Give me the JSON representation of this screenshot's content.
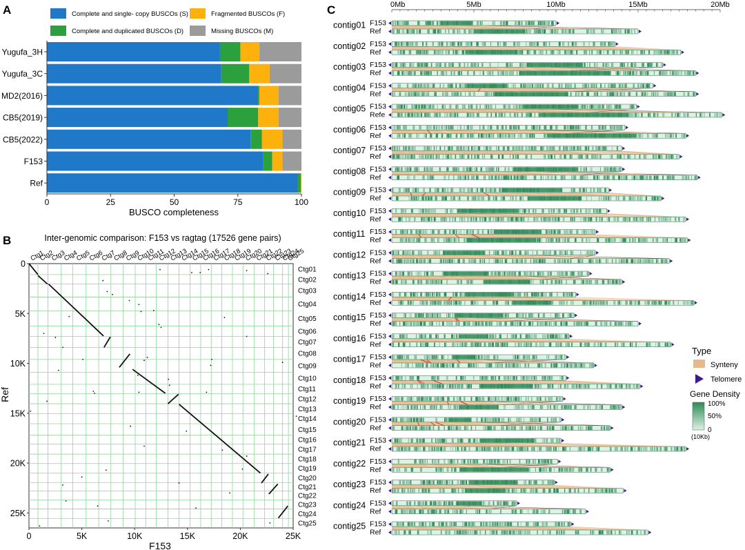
{
  "colors": {
    "single": "#1f78c8",
    "dup": "#2ca03c",
    "frag": "#fdb10c",
    "miss": "#9b9b9b",
    "dot_grid": "#8fd49a",
    "synteny": "#e6b98c",
    "telomere": "#3b1b8a",
    "dens_low": "#ddf1e5",
    "dens_high": "#2e8b57",
    "link": "#e03030"
  },
  "panels": {
    "a": "A",
    "b": "B",
    "c": "C"
  },
  "chart_data": [
    {
      "type": "bar",
      "orientation": "horizontal-stacked",
      "xlabel": "BUSCO completeness",
      "xlim": [
        0,
        100
      ],
      "xticks": [
        "0",
        "25",
        "50",
        "75",
        "100"
      ],
      "categories": [
        "Yugufa_3H",
        "Yugufa_3C",
        "MD2(2016)",
        "CB5(2019)",
        "CB5(2022)",
        "F153",
        "Ref"
      ],
      "series": [
        {
          "name": "Complete and single- copy BUSCOs (S)",
          "values": [
            68,
            68.5,
            83,
            71,
            80,
            85,
            98.5
          ]
        },
        {
          "name": "Complete and duplicated BUSCOs (D)",
          "values": [
            8,
            11,
            0.5,
            12,
            4.5,
            3.5,
            1.3
          ]
        },
        {
          "name": "Fragmented BUSCOs (F)",
          "values": [
            7.5,
            8,
            7.5,
            8,
            8,
            4,
            0.2
          ]
        },
        {
          "name": "Missing BUSCOs (M)",
          "values": [
            16.5,
            12.5,
            9,
            9,
            7.5,
            7.5,
            0
          ]
        }
      ],
      "legend": [
        "Complete and single- copy BUSCOs (S)",
        "Fragmented BUSCOs (F)",
        "Complete and duplicated BUSCOs (D)",
        "Missing BUSCOs (M)"
      ]
    },
    {
      "type": "scatter",
      "title": "Inter-genomic comparison: F153 vs ragtag (17526 gene pairs)",
      "xlabel": "F153",
      "ylabel": "Ref",
      "xlim": [
        0,
        25000
      ],
      "ylim": [
        0,
        26500
      ],
      "xticks": [
        "0",
        "5K",
        "10K",
        "15K",
        "20K",
        "25K"
      ],
      "yticks": [
        "0",
        "5K",
        "10K",
        "15K",
        "20K",
        "25K"
      ],
      "top_labels": [
        "Ctg1",
        "Ctg2",
        "Ctg3",
        "Ctg4",
        "Ctg5",
        "Ctg6",
        "Ctg7",
        "Ctg8",
        "Ctg9",
        "Ctg10",
        "Ctg11",
        "Ctg12",
        "Ctg13",
        "Ctg14",
        "Ctg15",
        "Ctg16",
        "Ctg17",
        "Ctg18",
        "Ctg19",
        "Ctg20",
        "Ctg21",
        "Ctg22",
        "Ctg23",
        "Ctg24",
        "Ctg25"
      ],
      "right_labels": [
        "Ctg01",
        "Ctg02",
        "Ctg03",
        "Ctg04",
        "Ctg05",
        "Ctg06",
        "Ctg07",
        "Ctg08",
        "Ctg09",
        "Ctg10",
        "Ctg11",
        "Ctg12",
        "Ctg13",
        "Ctg14",
        "Ctg15",
        "Ctg16",
        "Ctg17",
        "Ctg18",
        "Ctg19",
        "Ctg20",
        "Ctg21",
        "Ctg22",
        "Ctg23",
        "Ctg24",
        "Ctg25"
      ],
      "x_bounds": [
        0,
        850,
        1800,
        3050,
        4150,
        5400,
        6600,
        7750,
        8900,
        10050,
        11050,
        12050,
        13150,
        14200,
        15250,
        16250,
        17250,
        18250,
        19250,
        20250,
        21300,
        22300,
        23150,
        24000,
        24550,
        25000
      ],
      "y_bounds": [
        0,
        1100,
        2050,
        3350,
        4750,
        6250,
        7300,
        8400,
        9600,
        10900,
        12100,
        13050,
        14050,
        15050,
        16050,
        17200,
        18100,
        19100,
        20050,
        21000,
        21950,
        22800,
        23700,
        24600,
        25550,
        26500
      ],
      "segments": [
        {
          "x": [
            0,
            850
          ],
          "y": [
            0,
            1100
          ]
        },
        {
          "x": [
            850,
            1750
          ],
          "y": [
            1200,
            2050
          ]
        },
        {
          "x": [
            1850,
            7050
          ],
          "y": [
            2050,
            7250
          ]
        },
        {
          "x": [
            7100,
            7700
          ],
          "y": [
            8400,
            7350
          ]
        },
        {
          "x": [
            8550,
            9550
          ],
          "y": [
            10400,
            9050
          ]
        },
        {
          "x": [
            9800,
            12900
          ],
          "y": [
            10600,
            13000
          ]
        },
        {
          "x": [
            13150,
            14150
          ],
          "y": [
            14050,
            13100
          ]
        },
        {
          "x": [
            14200,
            21900
          ],
          "y": [
            14100,
            21000
          ]
        },
        {
          "x": [
            22000,
            22650
          ],
          "y": [
            22000,
            21100
          ]
        },
        {
          "x": [
            22700,
            23550
          ],
          "y": [
            23100,
            22100
          ]
        },
        {
          "x": [
            23600,
            24500
          ],
          "y": [
            25500,
            24300
          ]
        }
      ],
      "points": [
        {
          "x": 7000,
          "y": 1700
        },
        {
          "x": 11800,
          "y": 4700
        },
        {
          "x": 12400,
          "y": 600
        },
        {
          "x": 15400,
          "y": 900
        },
        {
          "x": 16200,
          "y": 900
        },
        {
          "x": 17000,
          "y": 600
        },
        {
          "x": 20600,
          "y": 700
        },
        {
          "x": 22600,
          "y": 1000
        },
        {
          "x": 7400,
          "y": 2800
        },
        {
          "x": 7900,
          "y": 3100
        },
        {
          "x": 9500,
          "y": 3700
        },
        {
          "x": 10400,
          "y": 4100
        },
        {
          "x": 10600,
          "y": 4800
        },
        {
          "x": 3800,
          "y": 5300
        },
        {
          "x": 1400,
          "y": 7000
        },
        {
          "x": 2500,
          "y": 7400
        },
        {
          "x": 3200,
          "y": 8400
        },
        {
          "x": 5100,
          "y": 9600
        },
        {
          "x": 10900,
          "y": 9700
        },
        {
          "x": 11200,
          "y": 9400
        },
        {
          "x": 10300,
          "y": 11200
        },
        {
          "x": 6100,
          "y": 12800
        },
        {
          "x": 6200,
          "y": 13000
        },
        {
          "x": 12300,
          "y": 6100
        },
        {
          "x": 12500,
          "y": 6400
        },
        {
          "x": 16800,
          "y": 12900
        },
        {
          "x": 18500,
          "y": 5400
        },
        {
          "x": 20600,
          "y": 7300
        },
        {
          "x": 17200,
          "y": 10200
        },
        {
          "x": 17300,
          "y": 9600
        },
        {
          "x": 24000,
          "y": 9900
        },
        {
          "x": 1700,
          "y": 13800
        },
        {
          "x": 150,
          "y": 14800
        },
        {
          "x": 5000,
          "y": 21400
        },
        {
          "x": 6500,
          "y": 24300
        },
        {
          "x": 3200,
          "y": 22200
        },
        {
          "x": 7500,
          "y": 25800
        },
        {
          "x": 14200,
          "y": 22000
        },
        {
          "x": 14900,
          "y": 16800
        },
        {
          "x": 19000,
          "y": 23000
        },
        {
          "x": 10900,
          "y": 18300
        },
        {
          "x": 3500,
          "y": 23800
        },
        {
          "x": 15800,
          "y": 24500
        },
        {
          "x": 18300,
          "y": 18700
        },
        {
          "x": 20200,
          "y": 20600
        },
        {
          "x": 20600,
          "y": 19300
        },
        {
          "x": 22800,
          "y": 26000
        },
        {
          "x": 25300,
          "y": 15300
        },
        {
          "x": 7300,
          "y": 20700
        },
        {
          "x": 9600,
          "y": 16300
        },
        {
          "x": 2800,
          "y": 10700
        },
        {
          "x": 13200,
          "y": 11600
        },
        {
          "x": 13300,
          "y": 12200
        },
        {
          "x": 10400,
          "y": 12900
        },
        {
          "x": 1000,
          "y": 26300
        }
      ]
    },
    {
      "type": "other",
      "axis_unit": "Mb",
      "axis_ticks": [
        "0Mb",
        "5Mb",
        "10Mb",
        "15Mb",
        "20Mb"
      ],
      "xlim": [
        0,
        20
      ],
      "contigs": [
        {
          "name": "contig01",
          "query": "F153",
          "ref": "Ref",
          "q_len": 10.0,
          "r_len": 15.0,
          "inverted": true,
          "links": 0
        },
        {
          "name": "contig02",
          "query": "F153",
          "ref": "Ref",
          "q_len": 13.6,
          "r_len": 17.6,
          "inverted": false,
          "links": 0
        },
        {
          "name": "contig03",
          "query": "F153",
          "ref": "Ref",
          "q_len": 16.5,
          "r_len": 18.5,
          "inverted": true,
          "links": 0
        },
        {
          "name": "contig04",
          "query": "F153",
          "ref": "Ref",
          "q_len": 15.9,
          "r_len": 18.5,
          "inverted": true,
          "links": 1
        },
        {
          "name": "contig05",
          "query": "F153",
          "ref": "Refe",
          "q_len": 14.9,
          "r_len": 20.1,
          "inverted": true,
          "links": 0
        },
        {
          "name": "contig06",
          "query": "F153",
          "ref": "Ref",
          "q_len": 14.2,
          "r_len": 17.9,
          "inverted": true,
          "links": 1
        },
        {
          "name": "contig07",
          "query": "F153",
          "ref": "Ref",
          "q_len": 14.0,
          "r_len": 17.5,
          "inverted": false,
          "links": 0
        },
        {
          "name": "contig08",
          "query": "F153",
          "ref": "Ref",
          "q_len": 14.0,
          "r_len": 18.6,
          "inverted": true,
          "links": 0
        },
        {
          "name": "contig09",
          "query": "F153",
          "ref": "Ref",
          "q_len": 13.2,
          "r_len": 16.4,
          "inverted": false,
          "links": 3
        },
        {
          "name": "contig10",
          "query": "F153",
          "ref": "Ref",
          "q_len": 13.1,
          "r_len": 17.9,
          "inverted": false,
          "links": 0
        },
        {
          "name": "contig11",
          "query": "F153",
          "ref": "Ref",
          "q_len": 12.4,
          "r_len": 18.0,
          "inverted": false,
          "links": 3
        },
        {
          "name": "contig12",
          "query": "F153",
          "ref": "Ref",
          "q_len": 12.4,
          "r_len": 16.9,
          "inverted": true,
          "links": 0
        },
        {
          "name": "contig13",
          "query": "F153",
          "ref": "Ref",
          "q_len": 12.0,
          "r_len": 14.0,
          "inverted": true,
          "links": 0
        },
        {
          "name": "contig14",
          "query": "F153",
          "ref": "Ref",
          "q_len": 11.2,
          "r_len": 18.4,
          "inverted": false,
          "links": 1
        },
        {
          "name": "contig15",
          "query": "F153",
          "ref": "Ref",
          "q_len": 11.1,
          "r_len": 15.0,
          "inverted": true,
          "links": 2
        },
        {
          "name": "contig16",
          "query": "F153",
          "ref": "Ref",
          "q_len": 10.8,
          "r_len": 17.0,
          "inverted": false,
          "links": 0
        },
        {
          "name": "contig17",
          "query": "F153",
          "ref": "Ref",
          "q_len": 10.6,
          "r_len": 12.3,
          "inverted": true,
          "links": 3
        },
        {
          "name": "contig18",
          "query": "F153",
          "ref": "Ref",
          "q_len": 10.6,
          "r_len": 15.1,
          "inverted": false,
          "links": 3
        },
        {
          "name": "contig19",
          "query": "F153",
          "ref": "Ref",
          "q_len": 10.4,
          "r_len": 14.0,
          "inverted": true,
          "links": 2
        },
        {
          "name": "contig20",
          "query": "F153",
          "ref": "Ref",
          "q_len": 10.3,
          "r_len": 13.3,
          "inverted": true,
          "links": 3
        },
        {
          "name": "contig21",
          "query": "F153",
          "ref": "Ref",
          "q_len": 10.3,
          "r_len": 17.9,
          "inverted": false,
          "links": 0
        },
        {
          "name": "contig22",
          "query": "F153",
          "ref": "Ref",
          "q_len": 10.1,
          "r_len": 13.3,
          "inverted": true,
          "links": 0
        },
        {
          "name": "contig23",
          "query": "F153",
          "ref": "Ref",
          "q_len": 9.9,
          "r_len": 14.1,
          "inverted": false,
          "links": 0
        },
        {
          "name": "contig24",
          "query": "F153",
          "ref": "Ref",
          "q_len": 7.6,
          "r_len": 11.8,
          "inverted": true,
          "links": 0
        },
        {
          "name": "contig25",
          "query": "F153",
          "ref": "Ref",
          "q_len": 10.9,
          "r_len": 15.6,
          "inverted": false,
          "links": 0
        }
      ],
      "legend": {
        "type_title": "Type",
        "synteny_label": "Synteny",
        "telomere_label": "Telomere",
        "density_title": "Gene Density",
        "density_ticks": [
          "100%",
          "50%",
          "0"
        ],
        "density_unit": "(10Kb)"
      }
    }
  ]
}
